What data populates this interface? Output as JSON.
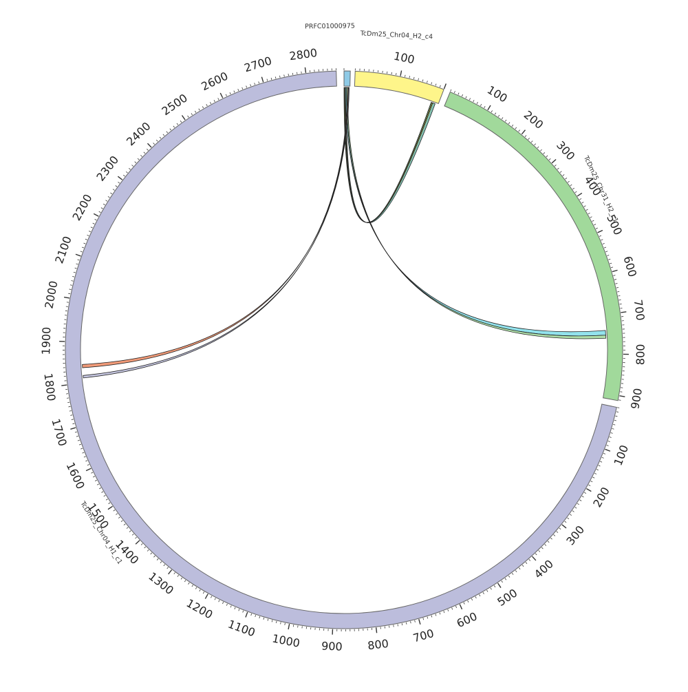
{
  "chart_data": {
    "type": "circos",
    "title": "",
    "unit_label": "",
    "chromosomes": [
      {
        "name": "PRFC01000975",
        "label": "PRFC01000975",
        "length": 8,
        "color": "#8ecae6",
        "start_deg": 0.0,
        "end_deg": 1.3,
        "label_ticks": false
      },
      {
        "name": "TcDm25_Chr04_H2_c4",
        "label": "TcDm25_Chr04_H2_c4",
        "length": 200,
        "color": "#fef58a",
        "start_deg": 2.3,
        "end_deg": 21.0,
        "label_ticks": true
      },
      {
        "name": "TcDm25_Chr31_H2_c1",
        "label": "TcDm25_Chr31_H2_c1",
        "length": 912,
        "color": "#a1d99b",
        "start_deg": 22.4,
        "end_deg": 100.5,
        "label_ticks": true
      },
      {
        "name": "TcDm25_Chr04_H1_c1",
        "label": "TcDm25_Chr04_H1_c1",
        "length": 2870,
        "color": "#bcbddc",
        "start_deg": 101.9,
        "end_deg": 358.4,
        "label_ticks": true
      }
    ],
    "tick_labels": {
      "TcDm25_Chr04_H2_c4": [
        "100"
      ],
      "TcDm25_Chr31_H2_c1": [
        "100",
        "200",
        "300",
        "400",
        "500",
        "600",
        "700",
        "800",
        "900"
      ],
      "TcDm25_Chr04_H1_c1": [
        "100",
        "200",
        "300",
        "400",
        "500",
        "600",
        "700",
        "800",
        "900",
        "1000",
        "1100",
        "1200",
        "1300",
        "1400",
        "1500",
        "1600",
        "1700",
        "1800",
        "1900",
        "2000",
        "2100",
        "2200",
        "2300",
        "2400",
        "2500",
        "2600",
        "2700",
        "2800"
      ]
    },
    "links": [
      {
        "from": "PRFC01000975",
        "from_start": 0,
        "from_end": 1,
        "to": "TcDm25_Chr04_H2_c4",
        "to_start": 183,
        "to_end": 190,
        "color": "#7fc97f"
      },
      {
        "from": "PRFC01000975",
        "from_start": 1,
        "from_end": 2,
        "to": "TcDm25_Chr04_H2_c4",
        "to_start": 185,
        "to_end": 191,
        "color": "#fdd835"
      },
      {
        "from": "PRFC01000975",
        "from_start": 2,
        "from_end": 3,
        "to": "TcDm25_Chr04_H2_c4",
        "to_start": 187,
        "to_end": 193,
        "color": "#80cbc4"
      },
      {
        "from": "PRFC01000975",
        "from_start": 2,
        "from_end": 3.5,
        "to": "TcDm25_Chr31_H2_c1",
        "to_start": 740,
        "to_end": 752,
        "color": "#80deea"
      },
      {
        "from": "PRFC01000975",
        "from_start": 3.5,
        "from_end": 5,
        "to": "TcDm25_Chr31_H2_c1",
        "to_start": 752,
        "to_end": 760,
        "color": "#a1d99b"
      },
      {
        "from": "PRFC01000975",
        "from_start": 5,
        "from_end": 6,
        "to": "TcDm25_Chr04_H1_c1",
        "to_start": 1837,
        "to_end": 1845,
        "color": "#ef8a62"
      },
      {
        "from": "PRFC01000975",
        "from_start": 6,
        "from_end": 7,
        "to": "TcDm25_Chr04_H1_c1",
        "to_start": 1812,
        "to_end": 1818,
        "color": "#bcbddc"
      }
    ]
  }
}
